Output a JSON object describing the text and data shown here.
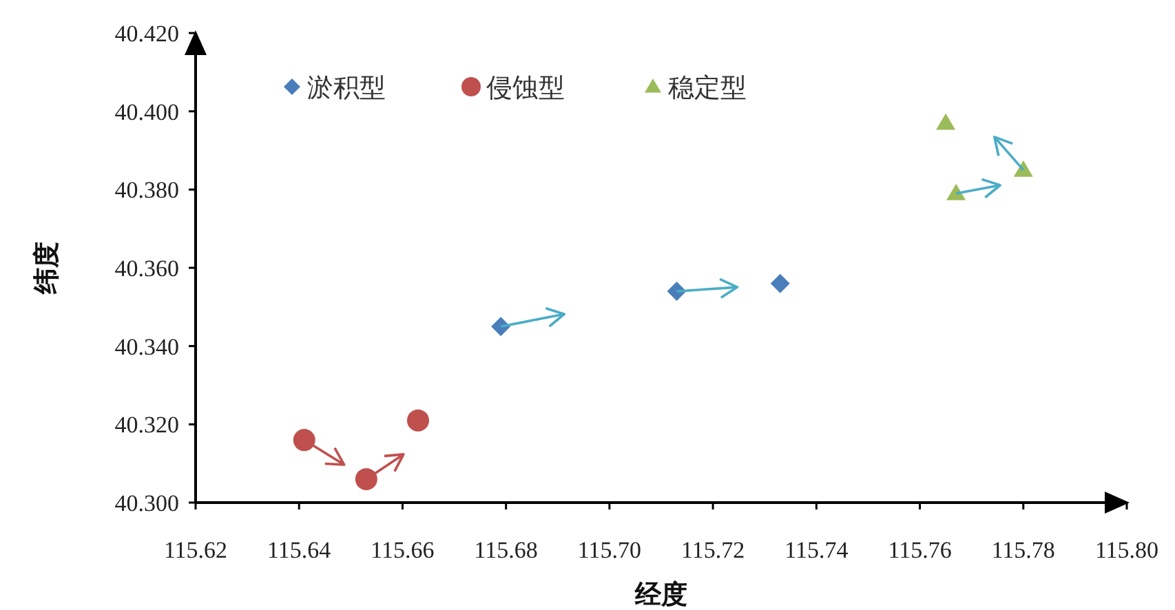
{
  "chart_data": {
    "type": "scatter",
    "xlabel": "经度",
    "ylabel": "纬度",
    "legend": "top left",
    "grid": false,
    "xlim": [
      115.62,
      115.8
    ],
    "xticks": [
      115.62,
      115.64,
      115.66,
      115.68,
      {
        "value": 115.7,
        "label": "115.70"
      },
      115.72,
      115.74,
      115.76,
      115.78,
      {
        "value": 115.8,
        "label": "115.80"
      }
    ],
    "ylim": [
      40.3,
      40.42
    ],
    "yticks": [
      {
        "value": 40.3,
        "label": "40.300"
      },
      {
        "value": 40.32,
        "label": "40.320"
      },
      {
        "value": 40.34,
        "label": "40.340"
      },
      {
        "value": 40.36,
        "label": "40.360"
      },
      {
        "value": 40.38,
        "label": "40.380"
      },
      {
        "value": 40.4,
        "label": "40.400"
      },
      {
        "value": 40.42,
        "label": "40.420"
      }
    ],
    "series": [
      {
        "name": "淤积型",
        "color": "#4a7ebb",
        "marker": "diamond",
        "x": [
          115.679,
          115.713,
          115.733
        ],
        "values": [
          40.345,
          40.354,
          40.356
        ]
      },
      {
        "name": "侵蚀型",
        "color": "#c0504d",
        "marker": "circle",
        "x": [
          115.641,
          115.653,
          115.663
        ],
        "values": [
          40.316,
          40.306,
          40.321
        ]
      },
      {
        "name": "稳定型",
        "color": "#9bbb59",
        "marker": "triangle",
        "x": [
          115.765,
          115.767,
          115.78
        ],
        "values": [
          40.397,
          40.379,
          40.385
        ]
      }
    ]
  }
}
